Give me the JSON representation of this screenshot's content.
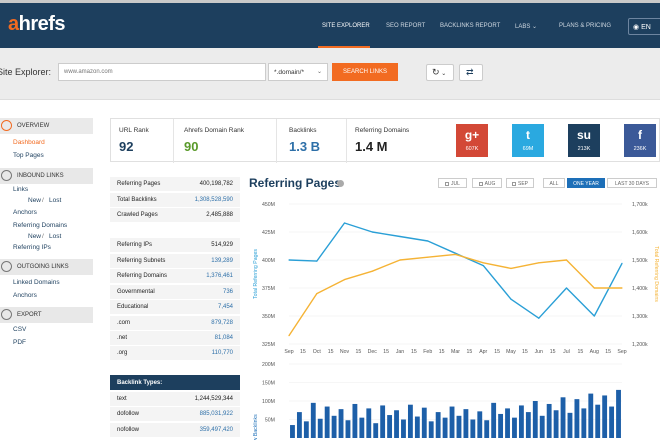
{
  "app": {
    "logo_prefix": "a",
    "logo_rest": "hrefs"
  },
  "nav": {
    "items": [
      "SITE EXPLORER",
      "SEO REPORT",
      "BACKLINKS REPORT",
      "LABS",
      "PLANS & PRICING"
    ],
    "language": "EN"
  },
  "search": {
    "label": "Site Explorer:",
    "placeholder": "www.amazon.com",
    "mode": "*.domain/*",
    "button": "SEARCH LINKS"
  },
  "sidebar": {
    "overview": "OVERVIEW",
    "dashboard": "Dashboard",
    "top_pages": "Top Pages",
    "inbound": "INBOUND LINKS",
    "links": "Links",
    "new_lost_1_new": "New",
    "new_lost_1_sep": "/",
    "new_lost_1_lost": "Lost",
    "anchors": "Anchors",
    "referring_domains": "Referring Domains",
    "new_lost_2_new": "New",
    "new_lost_2_sep": "/",
    "new_lost_2_lost": "Lost",
    "referring_ips": "Referring IPs",
    "outgoing": "OUTGOING LINKS",
    "linked_domains": "Linked Domains",
    "anchors_out": "Anchors",
    "export": "EXPORT",
    "csv": "CSV",
    "pdf": "PDF"
  },
  "metrics": [
    {
      "label": "URL Rank",
      "value": "92",
      "color": "#1d3f5e"
    },
    {
      "label": "Ahrefs Domain Rank",
      "value": "90",
      "color": "#5a9a2a"
    },
    {
      "label": "Backlinks",
      "value": "1.3 B",
      "color": "#2d6fa8"
    },
    {
      "label": "Referring Domains",
      "value": "1.4 M",
      "color": "#222"
    }
  ],
  "social": [
    {
      "name": "google-plus",
      "icon": "g+",
      "count": "607K",
      "color": "#d34836"
    },
    {
      "name": "twitter",
      "icon": "t",
      "count": "69M",
      "color": "#2aa9e0"
    },
    {
      "name": "stumbleupon",
      "icon": "su",
      "count": "213K",
      "color": "#1d3f5e"
    },
    {
      "name": "facebook",
      "icon": "f",
      "count": "236K",
      "color": "#3b5998"
    }
  ],
  "stats": [
    {
      "label": "Referring Pages",
      "value": "400,198,782",
      "link": false
    },
    {
      "label": "Total Backlinks",
      "value": "1,308,528,590",
      "link": true
    },
    {
      "label": "Crawled Pages",
      "value": "2,485,888",
      "link": false
    },
    {
      "label": "Referring IPs",
      "value": "514,929",
      "link": false
    },
    {
      "label": "Referring Subnets",
      "value": "139,289",
      "link": true
    },
    {
      "label": "Referring Domains",
      "value": "1,376,461",
      "link": true
    },
    {
      "label": "Governmental",
      "value": "736",
      "link": true
    },
    {
      "label": "Educational",
      "value": "7,454",
      "link": true
    },
    {
      "label": ".com",
      "value": "879,728",
      "link": true
    },
    {
      "label": ".net",
      "value": "81,084",
      "link": true
    },
    {
      "label": ".org",
      "value": "110,770",
      "link": true
    }
  ],
  "backlink_types": {
    "title": "Backlink Types:",
    "rows": [
      {
        "label": "text",
        "value": "1,244,529,344",
        "link": false
      },
      {
        "label": "dofollow",
        "value": "885,031,922",
        "link": true
      },
      {
        "label": "nofollow",
        "value": "359,497,420",
        "link": true
      }
    ]
  },
  "chart_panel": {
    "title": "Referring Pages",
    "ranges": [
      "JUL",
      "AUG",
      "SEP",
      "ALL",
      "ONE YEAR",
      "LAST 30 DAYS"
    ],
    "active_range": "ONE YEAR"
  },
  "chart_data": [
    {
      "type": "line",
      "title": "Referring Pages",
      "x": [
        "Sep",
        "Oct",
        "Nov",
        "Dec",
        "Jan",
        "Feb",
        "Mar",
        "Apr",
        "May",
        "Jun",
        "Jul",
        "Aug",
        "Sep"
      ],
      "x_tick_labels": [
        "Sep",
        "Oct",
        "Nov",
        "Dec",
        "Jan",
        "Feb",
        "Mar",
        "Apr",
        "May",
        "Jun",
        "Jul",
        "Aug",
        "Sep"
      ],
      "x_minor_ticks": [
        "15",
        "15",
        "15",
        "15",
        "15",
        "15",
        "15",
        "15",
        "15",
        "15",
        "15",
        "15"
      ],
      "ylabel_left": "Total Referring Pages",
      "ylabel_right": "Total Referring Domains",
      "ylim_left": [
        325000000,
        450000000
      ],
      "ylim_right": [
        1200000,
        1700000
      ],
      "y_ticks_left": [
        "450M",
        "425M",
        "400M",
        "375M",
        "350M",
        "325M"
      ],
      "y_ticks_right": [
        "1,700k",
        "1,600k",
        "1,500k",
        "1,400k",
        "1,300k",
        "1,200k"
      ],
      "series": [
        {
          "name": "Total Referring Pages",
          "axis": "left",
          "color": "#2a9fd6",
          "values": [
            400,
            399,
            433,
            425,
            421,
            417,
            406,
            395,
            365,
            348,
            375,
            350,
            397
          ]
        },
        {
          "name": "Total Referring Domains",
          "axis": "right",
          "color": "#f5b335",
          "values": [
            1230,
            1380,
            1430,
            1460,
            1500,
            1510,
            1520,
            1490,
            1470,
            1490,
            1500,
            1400,
            1400
          ]
        }
      ]
    },
    {
      "type": "bar",
      "title": "New Backlinks",
      "ylabel": "New Backlinks",
      "y_ticks": [
        "200M",
        "150M",
        "100M",
        "50M"
      ],
      "ylim": [
        0,
        200
      ],
      "values": [
        35,
        70,
        45,
        95,
        52,
        85,
        60,
        78,
        48,
        92,
        55,
        80,
        40,
        88,
        62,
        75,
        50,
        90,
        58,
        82,
        45,
        70,
        55,
        85,
        60,
        78,
        50,
        72,
        48,
        95,
        65,
        80,
        55,
        88,
        70,
        100,
        60,
        92,
        75,
        110,
        68,
        105,
        80,
        120,
        90,
        115,
        85,
        130
      ]
    }
  ]
}
